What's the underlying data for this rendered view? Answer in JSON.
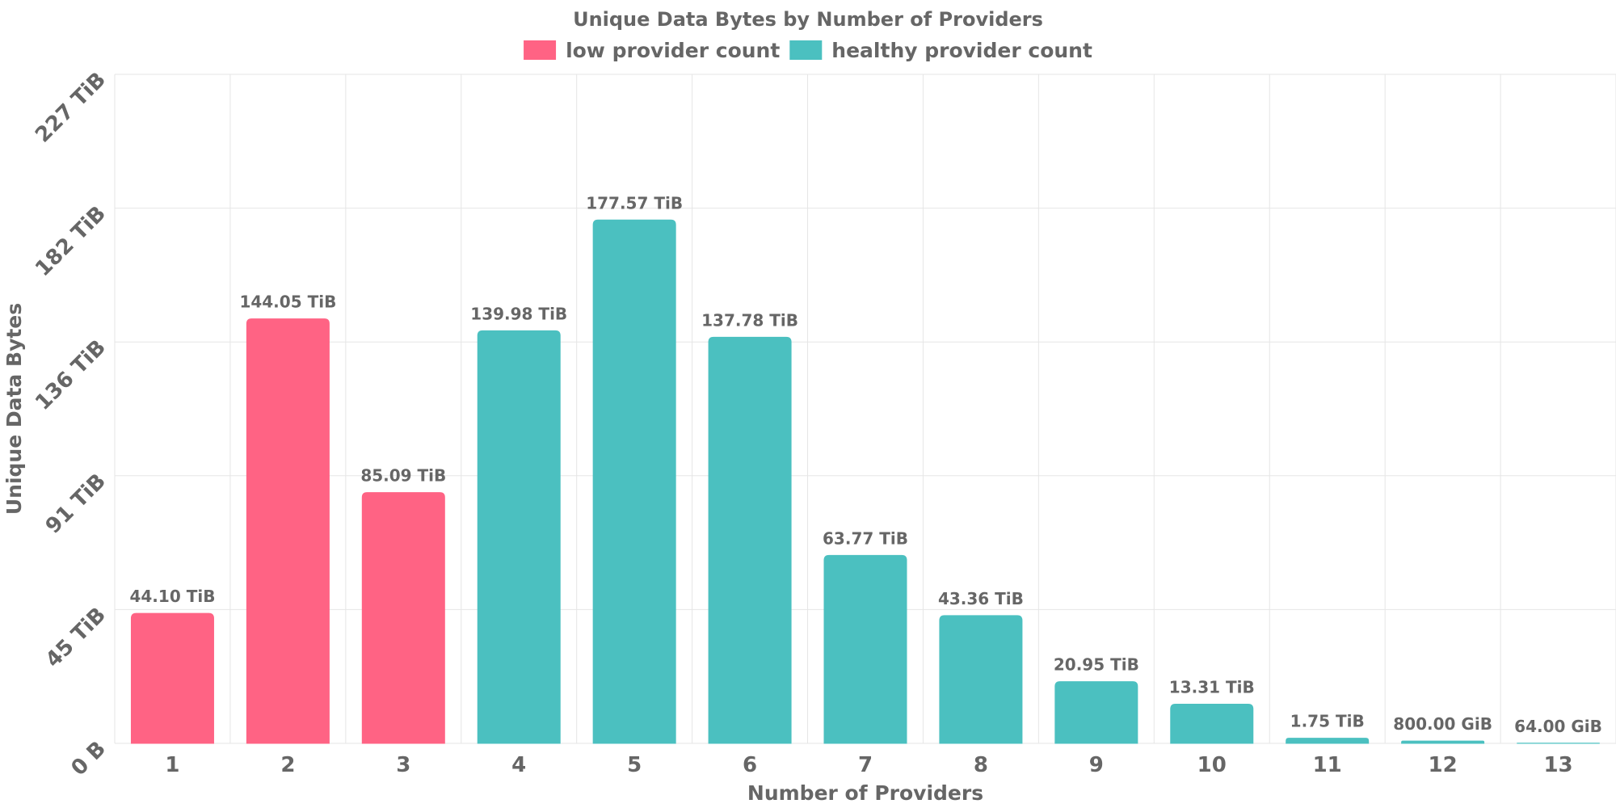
{
  "chart_data": {
    "type": "bar",
    "title": "Unique Data Bytes by Number of Providers",
    "xlabel": "Number of Providers",
    "ylabel": "Unique Data Bytes",
    "categories": [
      "1",
      "2",
      "3",
      "4",
      "5",
      "6",
      "7",
      "8",
      "9",
      "10",
      "11",
      "12",
      "13"
    ],
    "values_tib": [
      44.1,
      144.05,
      85.09,
      139.98,
      177.57,
      137.78,
      63.77,
      43.36,
      20.95,
      13.31,
      1.75,
      0.78125,
      0.0625
    ],
    "value_labels": [
      "44.10 TiB",
      "144.05 TiB",
      "85.09 TiB",
      "139.98 TiB",
      "177.57 TiB",
      "137.78 TiB",
      "63.77 TiB",
      "43.36 TiB",
      "20.95 TiB",
      "13.31 TiB",
      "1.75 TiB",
      "800.00 GiB",
      "64.00 GiB"
    ],
    "series_group": [
      "low",
      "low",
      "low",
      "healthy",
      "healthy",
      "healthy",
      "healthy",
      "healthy",
      "healthy",
      "healthy",
      "healthy",
      "healthy",
      "healthy"
    ],
    "legend": [
      {
        "key": "low",
        "label": "low provider count",
        "color": "#ff6384"
      },
      {
        "key": "healthy",
        "label": "healthy provider count",
        "color": "#4bc0c0"
      }
    ],
    "legend_position": "top-center",
    "y_ticks": [
      {
        "value": 0,
        "label": "0 B"
      },
      {
        "value": 45.4,
        "label": "45 TiB"
      },
      {
        "value": 90.8,
        "label": "91 TiB"
      },
      {
        "value": 136.2,
        "label": "136 TiB"
      },
      {
        "value": 181.6,
        "label": "182 TiB"
      },
      {
        "value": 227,
        "label": "227 TiB"
      }
    ],
    "ylim": [
      0,
      227
    ],
    "unit": "TiB",
    "grid": true
  }
}
